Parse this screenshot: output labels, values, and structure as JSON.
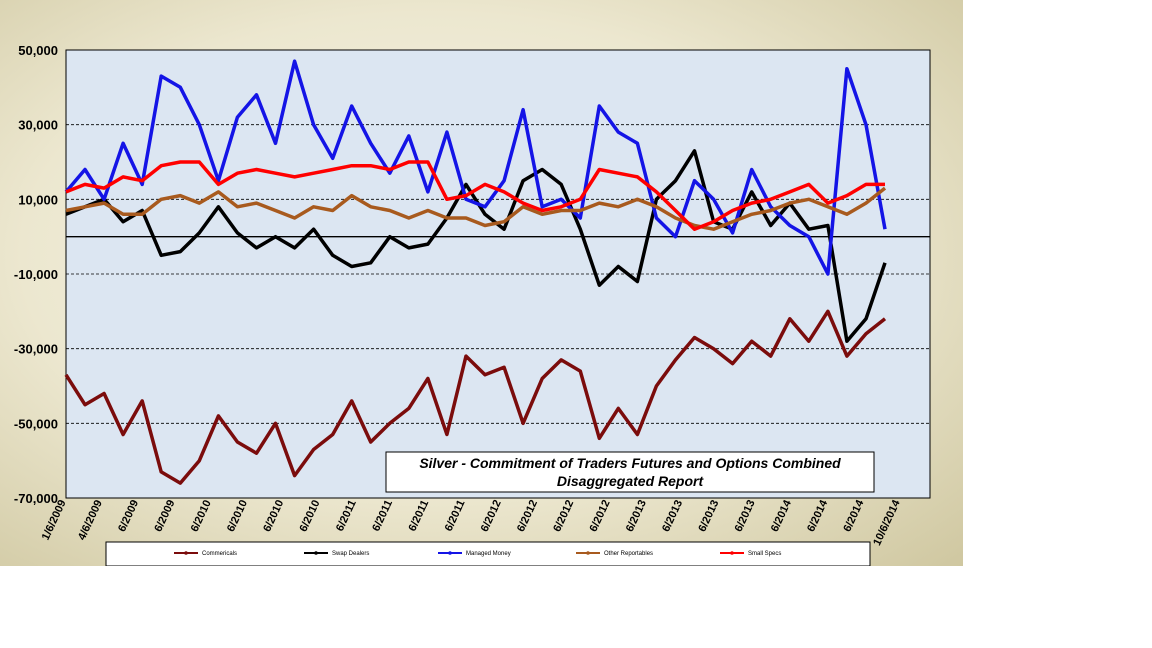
{
  "chart_data": {
    "type": "line",
    "title": "Silver - Commitment of Traders Futures and Options Combined",
    "subtitle": "Disaggregated  Report",
    "ylim": [
      -70000,
      50000
    ],
    "y_ticks": [
      "50,000",
      "30,000",
      "10,000",
      "-10,000",
      "-30,000",
      "-50,000",
      "-70,000"
    ],
    "y_tick_values": [
      50000,
      30000,
      10000,
      -10000,
      -30000,
      -50000,
      -70000
    ],
    "x_tick_labels": [
      "1/6/2009",
      "4/6/2009",
      "6/2009",
      "6/2009",
      "6/2010",
      "6/2010",
      "6/2010",
      "6/2010",
      "6/2011",
      "6/2011",
      "6/2011",
      "6/2011",
      "6/2012",
      "6/2012",
      "6/2012",
      "6/2012",
      "6/2013",
      "6/2013",
      "6/2013",
      "6/2013",
      "6/2014",
      "6/2014",
      "6/2014",
      "10/6/2014"
    ],
    "gridlines": "dashed at 10,000 intervals",
    "legend_position": "bottom",
    "series": [
      {
        "name": "Commericals",
        "color": "#7b0c0c",
        "values": [
          -37000,
          -45000,
          -42000,
          -53000,
          -44000,
          -63000,
          -66000,
          -60000,
          -48000,
          -55000,
          -58000,
          -50000,
          -64000,
          -57000,
          -53000,
          -44000,
          -55000,
          -50000,
          -46000,
          -38000,
          -53000,
          -32000,
          -37000,
          -35000,
          -50000,
          -38000,
          -33000,
          -36000,
          -54000,
          -46000,
          -53000,
          -40000,
          -33000,
          -27000,
          -30000,
          -34000,
          -28000,
          -32000,
          -22000,
          -28000,
          -20000,
          -32000,
          -26000,
          -22000
        ]
      },
      {
        "name": "Swap Dealers",
        "color": "#000000",
        "values": [
          6000,
          8000,
          10000,
          4000,
          7000,
          -5000,
          -4000,
          1000,
          8000,
          1000,
          -3000,
          0,
          -3000,
          2000,
          -5000,
          -8000,
          -7000,
          0,
          -3000,
          -2000,
          5000,
          14000,
          6000,
          2000,
          15000,
          18000,
          14000,
          2000,
          -13000,
          -8000,
          -12000,
          10000,
          15000,
          23000,
          4000,
          2000,
          12000,
          3000,
          9000,
          2000,
          3000,
          -28000,
          -22000,
          -7000
        ]
      },
      {
        "name": "Managed Money",
        "color": "#1414e6",
        "values": [
          12000,
          18000,
          10000,
          25000,
          14000,
          43000,
          40000,
          30000,
          15000,
          32000,
          38000,
          25000,
          47000,
          30000,
          21000,
          35000,
          25000,
          17000,
          27000,
          12000,
          28000,
          10000,
          8000,
          15000,
          34000,
          8000,
          10000,
          5000,
          35000,
          28000,
          25000,
          5000,
          0,
          15000,
          10000,
          1000,
          18000,
          8000,
          3000,
          0,
          -10000,
          45000,
          30000,
          2000
        ]
      },
      {
        "name": "Other Reportables",
        "color": "#a85a1e",
        "values": [
          7000,
          8000,
          9000,
          6000,
          6000,
          10000,
          11000,
          9000,
          12000,
          8000,
          9000,
          7000,
          5000,
          8000,
          7000,
          11000,
          8000,
          7000,
          5000,
          7000,
          5000,
          5000,
          3000,
          4000,
          8000,
          6000,
          7000,
          7000,
          9000,
          8000,
          10000,
          8000,
          5000,
          3000,
          2000,
          4000,
          6000,
          7000,
          9000,
          10000,
          8000,
          6000,
          9000,
          13000
        ]
      },
      {
        "name": "Small Specs",
        "color": "#ff0000",
        "values": [
          12000,
          14000,
          13000,
          16000,
          15000,
          19000,
          20000,
          20000,
          14000,
          17000,
          18000,
          17000,
          16000,
          17000,
          18000,
          19000,
          19000,
          18000,
          20000,
          20000,
          10000,
          11000,
          14000,
          12000,
          9000,
          7000,
          8000,
          10000,
          18000,
          17000,
          16000,
          12000,
          7000,
          2000,
          4000,
          7000,
          9000,
          10000,
          12000,
          14000,
          9000,
          11000,
          14000,
          14000
        ]
      }
    ]
  }
}
